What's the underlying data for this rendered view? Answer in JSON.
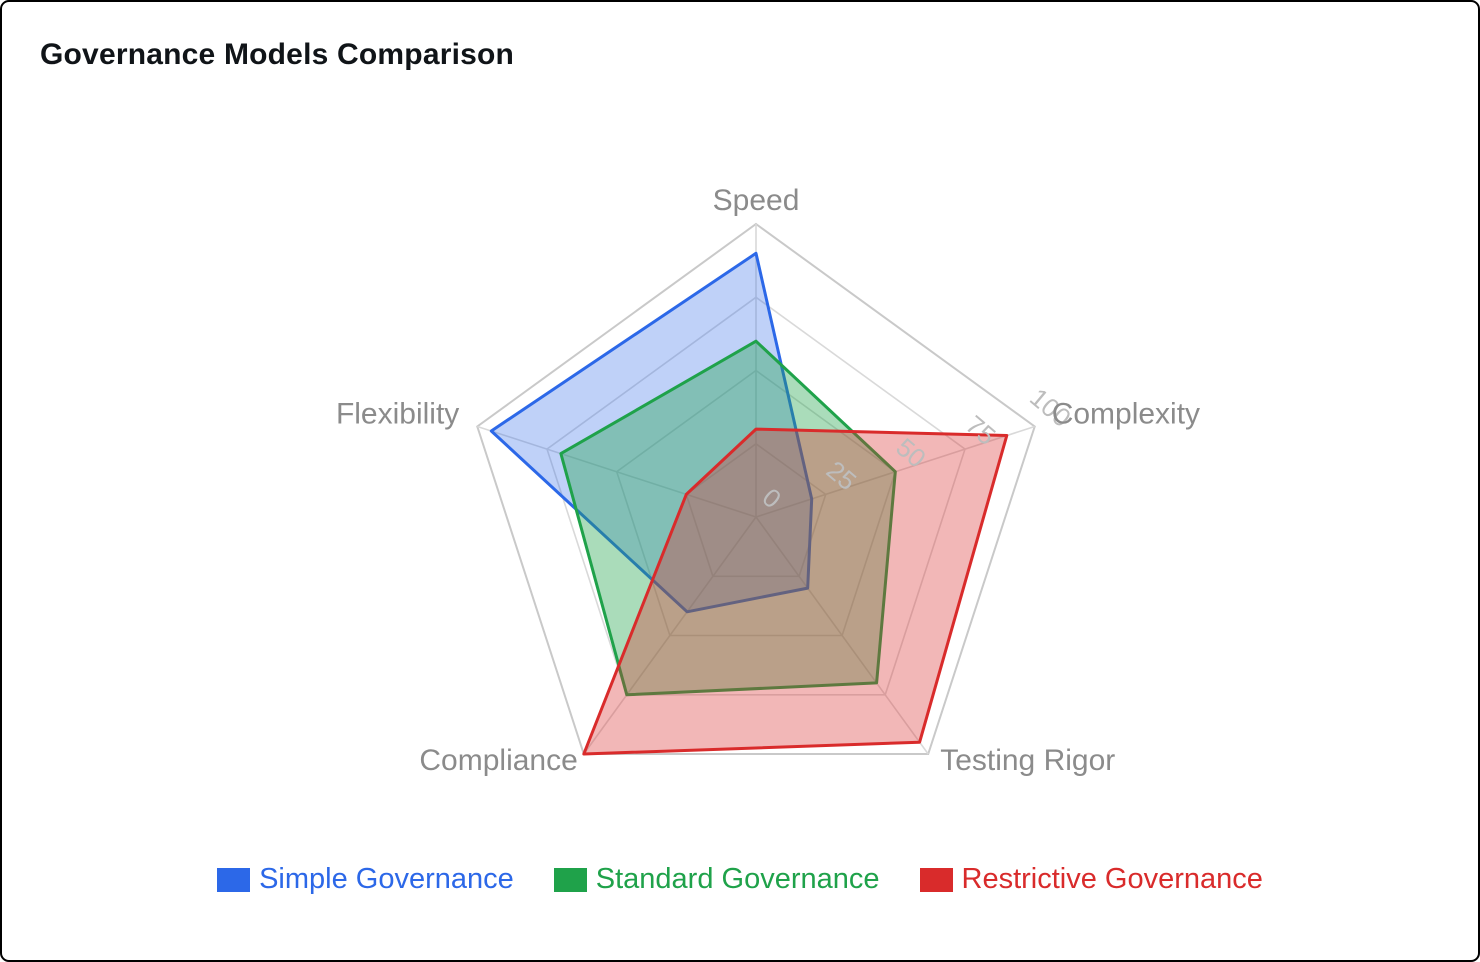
{
  "chart_data": {
    "type": "radar",
    "title": "Governance Models Comparison",
    "categories": [
      "Speed",
      "Complexity",
      "Testing Rigor",
      "Compliance",
      "Flexibility"
    ],
    "series": [
      {
        "name": "Simple Governance",
        "color": "#2c68e8",
        "fill_opacity": 0.3,
        "values": [
          90,
          20,
          30,
          40,
          95
        ]
      },
      {
        "name": "Standard Governance",
        "color": "#1fa24a",
        "fill_opacity": 0.38,
        "values": [
          60,
          50,
          70,
          75,
          70
        ]
      },
      {
        "name": "Restrictive Governance",
        "color": "#d92b2b",
        "fill_opacity": 0.34,
        "values": [
          30,
          90,
          95,
          100,
          25
        ]
      }
    ],
    "radial_ticks": [
      0,
      25,
      50,
      75,
      100
    ],
    "r_min": 0,
    "r_max": 100,
    "grid": true,
    "legend_position": "bottom",
    "grid_color": "#d9d9d9",
    "outer_ring_color": "#c9c9c9",
    "axis_label_color": "#8b8b8b",
    "tick_label_color": "#bdbdbd",
    "title_color": "#101418",
    "background_color": "#ffffff"
  }
}
